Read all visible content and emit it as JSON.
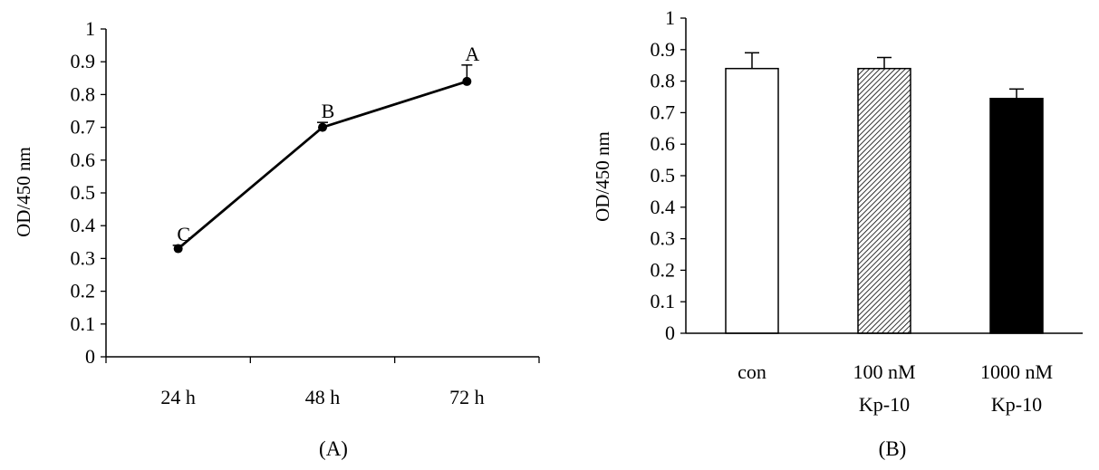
{
  "chart_data": [
    {
      "type": "line",
      "panel_label": "(A)",
      "ylabel": "OD/450 nm",
      "ylim": [
        0,
        1
      ],
      "yticks": [
        "0",
        "0.1",
        "0.2",
        "0.3",
        "0.4",
        "0.5",
        "0.6",
        "0.7",
        "0.8",
        "0.9",
        "1"
      ],
      "categories": [
        "24 h",
        "48 h",
        "72 h"
      ],
      "values": [
        0.33,
        0.7,
        0.84
      ],
      "errors": [
        0.01,
        0.015,
        0.05
      ],
      "point_labels": [
        "C",
        "B",
        "A"
      ],
      "grid": false,
      "color": "#000000"
    },
    {
      "type": "bar",
      "panel_label": "(B)",
      "ylabel": "OD/450 nm",
      "ylim": [
        0,
        1
      ],
      "yticks": [
        "0",
        "0.1",
        "0.2",
        "0.3",
        "0.4",
        "0.5",
        "0.6",
        "0.7",
        "0.8",
        "0.9",
        "1"
      ],
      "categories": [
        [
          "con"
        ],
        [
          "100 nM",
          "Kp-10"
        ],
        [
          "1000 nM",
          "Kp-10"
        ]
      ],
      "values": [
        0.84,
        0.84,
        0.745
      ],
      "errors": [
        0.05,
        0.035,
        0.03
      ],
      "fills": [
        "white",
        "hatched",
        "black"
      ],
      "grid": false
    }
  ]
}
